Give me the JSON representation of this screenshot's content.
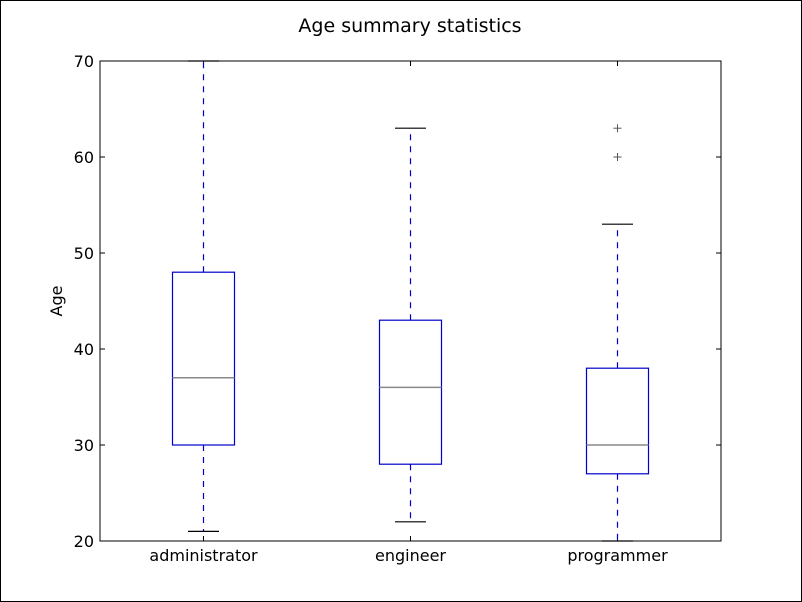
{
  "chart_data": {
    "type": "box",
    "title": "Age summary statistics",
    "xlabel": "",
    "ylabel": "Age",
    "ylim": [
      20,
      70
    ],
    "yticks": [
      20,
      30,
      40,
      50,
      60,
      70
    ],
    "grid": false,
    "categories": [
      "administrator",
      "engineer",
      "programmer"
    ],
    "boxes": [
      {
        "label": "administrator",
        "whisker_low": 21,
        "q1": 30,
        "median": 37,
        "q3": 48,
        "whisker_high": 70,
        "outliers": []
      },
      {
        "label": "engineer",
        "whisker_low": 22,
        "q1": 28,
        "median": 36,
        "q3": 43,
        "whisker_high": 63,
        "outliers": []
      },
      {
        "label": "programmer",
        "whisker_low": 20,
        "q1": 27,
        "median": 30,
        "q3": 38,
        "whisker_high": 53,
        "outliers": [
          60,
          63
        ]
      }
    ],
    "colors": {
      "box": "#0000cc",
      "whisker": "#0000cc",
      "median": "#888888",
      "cap": "#000000",
      "outlier": "#555555",
      "axis": "#000000"
    }
  }
}
